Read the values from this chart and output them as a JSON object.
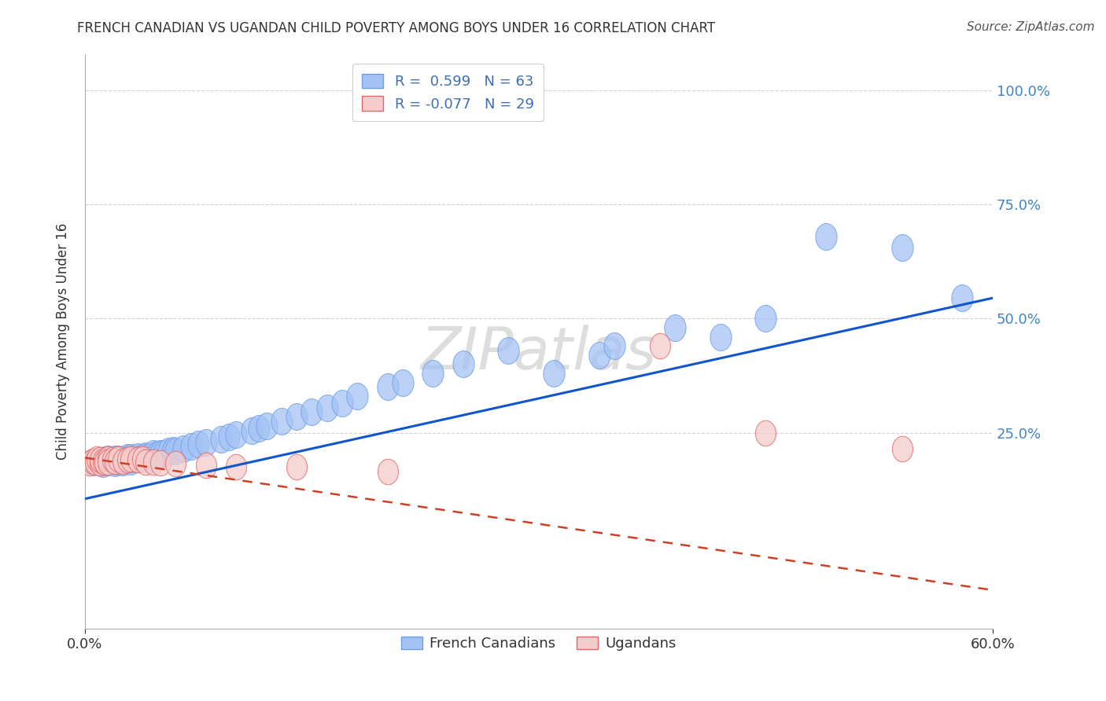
{
  "title": "FRENCH CANADIAN VS UGANDAN CHILD POVERTY AMONG BOYS UNDER 16 CORRELATION CHART",
  "source": "Source: ZipAtlas.com",
  "ylabel": "Child Poverty Among Boys Under 16",
  "x_tick_labels": [
    "0.0%",
    "60.0%"
  ],
  "y_tick_labels_right": [
    "100.0%",
    "75.0%",
    "50.0%",
    "25.0%"
  ],
  "y_tick_values": [
    1.0,
    0.75,
    0.5,
    0.25
  ],
  "x_range": [
    0.0,
    0.6
  ],
  "y_range": [
    -0.18,
    1.08
  ],
  "r_blue": 0.599,
  "n_blue": 63,
  "r_pink": -0.077,
  "n_pink": 29,
  "legend_label_blue": "French Canadians",
  "legend_label_pink": "Ugandans",
  "blue_color": "#a4c2f4",
  "pink_color": "#f4cccc",
  "blue_edge_color": "#6d9eeb",
  "pink_edge_color": "#e06666",
  "blue_line_color": "#1155cc",
  "pink_line_color": "#cc4125",
  "watermark": "ZIPatlas",
  "blue_line_x0": 0.0,
  "blue_line_y0": 0.105,
  "blue_line_x1": 0.6,
  "blue_line_y1": 0.545,
  "pink_line_x0": 0.0,
  "pink_line_y0": 0.195,
  "pink_line_x1": 0.6,
  "pink_line_y1": -0.095,
  "blue_points_x": [
    0.005,
    0.01,
    0.01,
    0.012,
    0.013,
    0.015,
    0.015,
    0.018,
    0.02,
    0.02,
    0.022,
    0.022,
    0.025,
    0.025,
    0.028,
    0.028,
    0.03,
    0.03,
    0.032,
    0.035,
    0.035,
    0.038,
    0.04,
    0.04,
    0.042,
    0.045,
    0.045,
    0.048,
    0.05,
    0.052,
    0.055,
    0.058,
    0.06,
    0.065,
    0.07,
    0.075,
    0.08,
    0.09,
    0.095,
    0.1,
    0.11,
    0.115,
    0.12,
    0.13,
    0.14,
    0.15,
    0.16,
    0.17,
    0.18,
    0.2,
    0.21,
    0.23,
    0.25,
    0.28,
    0.31,
    0.34,
    0.35,
    0.39,
    0.42,
    0.45,
    0.49,
    0.54,
    0.58
  ],
  "blue_points_y": [
    0.185,
    0.185,
    0.188,
    0.182,
    0.19,
    0.185,
    0.192,
    0.188,
    0.183,
    0.192,
    0.188,
    0.193,
    0.185,
    0.19,
    0.19,
    0.195,
    0.188,
    0.195,
    0.192,
    0.192,
    0.198,
    0.195,
    0.195,
    0.2,
    0.198,
    0.2,
    0.205,
    0.202,
    0.205,
    0.205,
    0.21,
    0.212,
    0.21,
    0.215,
    0.22,
    0.225,
    0.228,
    0.235,
    0.24,
    0.245,
    0.255,
    0.26,
    0.265,
    0.275,
    0.285,
    0.295,
    0.305,
    0.315,
    0.33,
    0.35,
    0.36,
    0.38,
    0.4,
    0.43,
    0.38,
    0.42,
    0.44,
    0.48,
    0.46,
    0.5,
    0.68,
    0.655,
    0.545
  ],
  "pink_points_x": [
    0.003,
    0.005,
    0.007,
    0.008,
    0.01,
    0.01,
    0.012,
    0.013,
    0.015,
    0.015,
    0.018,
    0.02,
    0.022,
    0.025,
    0.028,
    0.03,
    0.035,
    0.038,
    0.04,
    0.045,
    0.05,
    0.06,
    0.08,
    0.1,
    0.14,
    0.2,
    0.38,
    0.45,
    0.54
  ],
  "pink_points_y": [
    0.183,
    0.188,
    0.185,
    0.192,
    0.183,
    0.19,
    0.188,
    0.186,
    0.192,
    0.185,
    0.19,
    0.188,
    0.192,
    0.188,
    0.19,
    0.192,
    0.19,
    0.192,
    0.185,
    0.185,
    0.183,
    0.182,
    0.178,
    0.175,
    0.175,
    0.165,
    0.44,
    0.25,
    0.215
  ]
}
